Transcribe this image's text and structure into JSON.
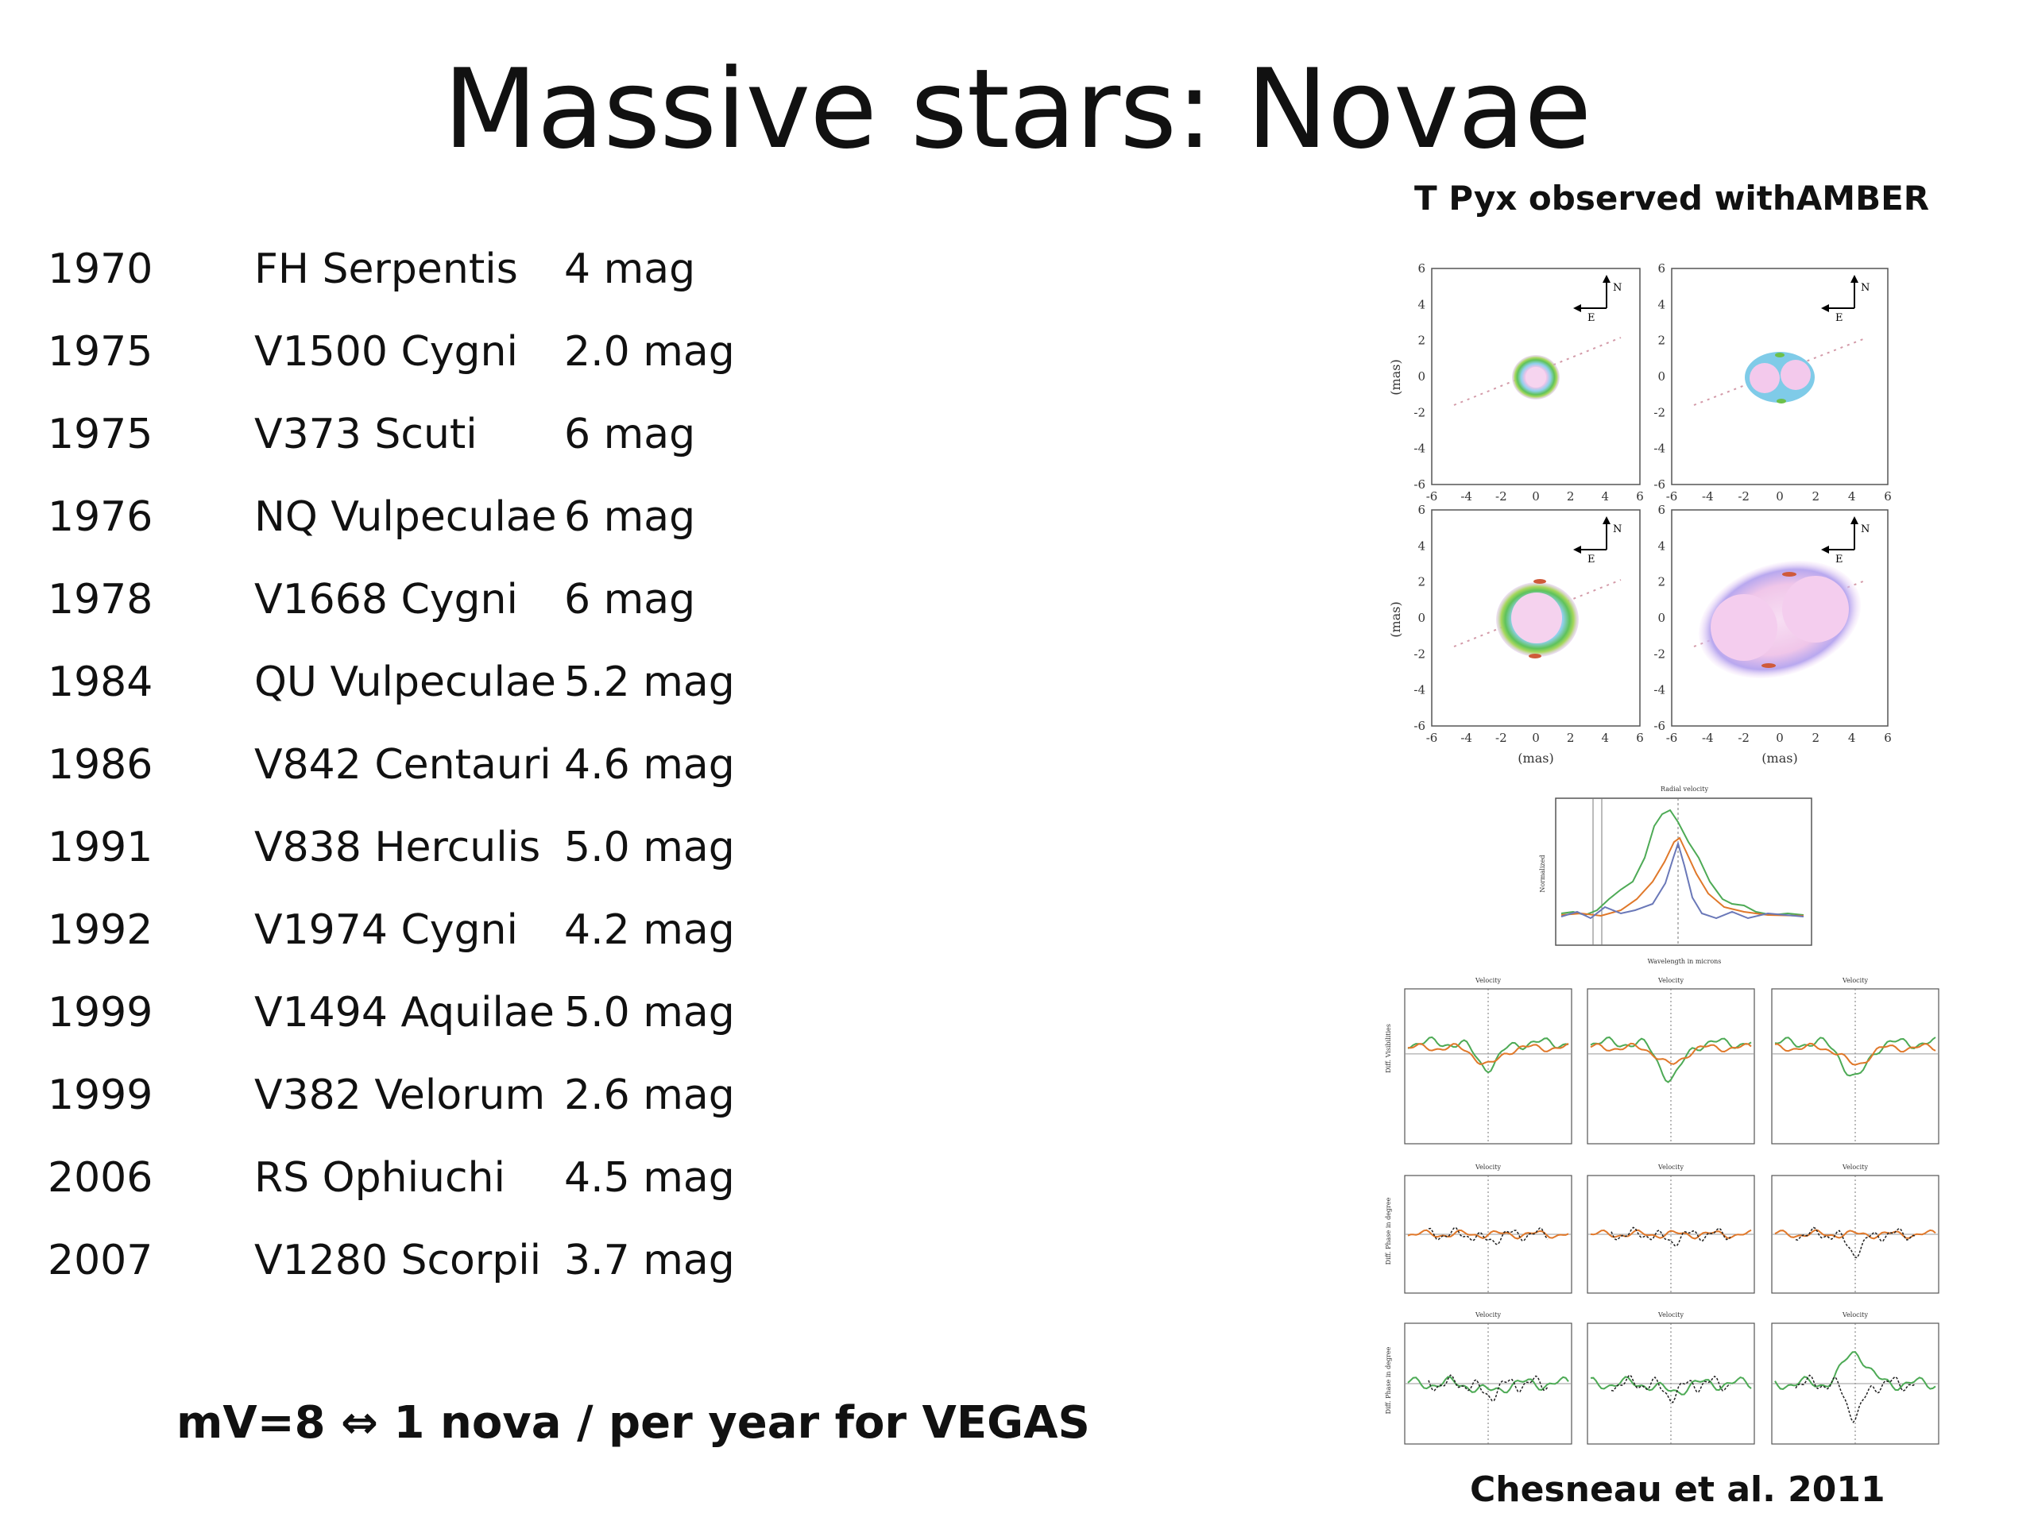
{
  "slide": {
    "title": "Massive stars: Novae",
    "figure_caption": "T Pyx observed withAMBER",
    "citation": "Chesneau et al. 2011",
    "footnote": "mV=8 ⇔ 1 nova / per year for VEGAS"
  },
  "novae": [
    {
      "year": "1970",
      "name": "FH Serpentis",
      "mag": "4 mag"
    },
    {
      "year": "1975",
      "name": "V1500 Cygni",
      "mag": "2.0 mag"
    },
    {
      "year": "1975",
      "name": "V373 Scuti",
      "mag": "6 mag"
    },
    {
      "year": "1976",
      "name": "NQ Vulpeculae",
      "mag": "6 mag"
    },
    {
      "year": "1978",
      "name": "V1668 Cygni",
      "mag": "6 mag"
    },
    {
      "year": "1984",
      "name": "QU Vulpeculae",
      "mag": "5.2 mag"
    },
    {
      "year": "1986",
      "name": "V842 Centauri",
      "mag": "4.6 mag"
    },
    {
      "year": "1991",
      "name": "V838 Herculis",
      "mag": "5.0 mag"
    },
    {
      "year": "1992",
      "name": "V1974 Cygni",
      "mag": "4.2 mag"
    },
    {
      "year": "1999",
      "name": "V1494 Aquilae",
      "mag": "5.0 mag"
    },
    {
      "year": "1999",
      "name": "V382 Velorum",
      "mag": "2.6 mag"
    },
    {
      "year": "2006",
      "name": "RS Ophiuchi",
      "mag": "4.5 mag"
    },
    {
      "year": "2007",
      "name": "V1280 Scorpii",
      "mag": "3.7 mag"
    }
  ],
  "figure": {
    "map_ticks": [
      "-6",
      "-4",
      "-2",
      "0",
      "2",
      "4",
      "6"
    ],
    "map_axis_label": "(mas)",
    "compass_north": "N",
    "compass_east": "E",
    "spectrum_top_label": "Radial velocity",
    "spectrum_ylabel": "Normalized",
    "spectrum_xlabel": "Wavelength in microns",
    "velocity_label": "Velocity",
    "visibility_ylabel": "Diff. Visibilities",
    "phase_ylabel": "Diff. Phase in degree"
  }
}
